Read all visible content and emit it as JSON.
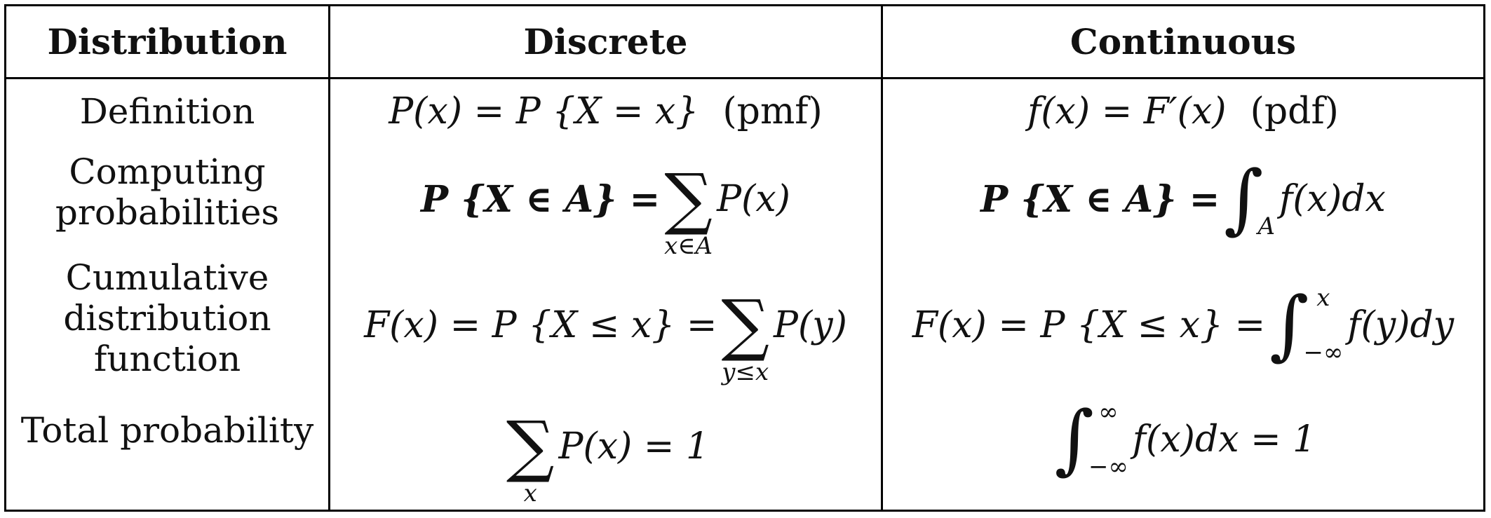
{
  "table": {
    "headers": [
      "Distribution",
      "Discrete",
      "Continuous"
    ],
    "rows": [
      {
        "label": "Definition",
        "discrete": {
          "lhs": "P(x) = P {X = x}",
          "note": "(pmf)"
        },
        "continuous": {
          "lhs": "f(x) = F′(x)",
          "note": "(pdf)"
        }
      },
      {
        "label_lines": [
          "Computing",
          "probabilities"
        ],
        "discrete": {
          "lhs": "P {X ∈ A} =",
          "op": "∑",
          "sub": "x∈A",
          "rhs": "P(x)"
        },
        "continuous": {
          "lhs": "P {X ∈ A} =",
          "op": "∫",
          "sub": "A",
          "rhs": "f(x)dx"
        }
      },
      {
        "label_lines": [
          "Cumulative",
          "distribution",
          "function"
        ],
        "discrete": {
          "lhs": "F(x) = P {X ≤ x} =",
          "op": "∑",
          "sub": "y≤x",
          "rhs": "P(y)"
        },
        "continuous": {
          "lhs": "F(x) = P {X ≤ x} =",
          "op": "∫",
          "sub": "−∞",
          "sup": "x",
          "rhs": "f(y)dy"
        }
      },
      {
        "label": "Total probability",
        "discrete": {
          "op": "∑",
          "sub": "x",
          "rhs": "P(x) = 1"
        },
        "continuous": {
          "op": "∫",
          "sub": "−∞",
          "sup": "∞",
          "rhs": "f(x)dx = 1"
        }
      }
    ]
  }
}
